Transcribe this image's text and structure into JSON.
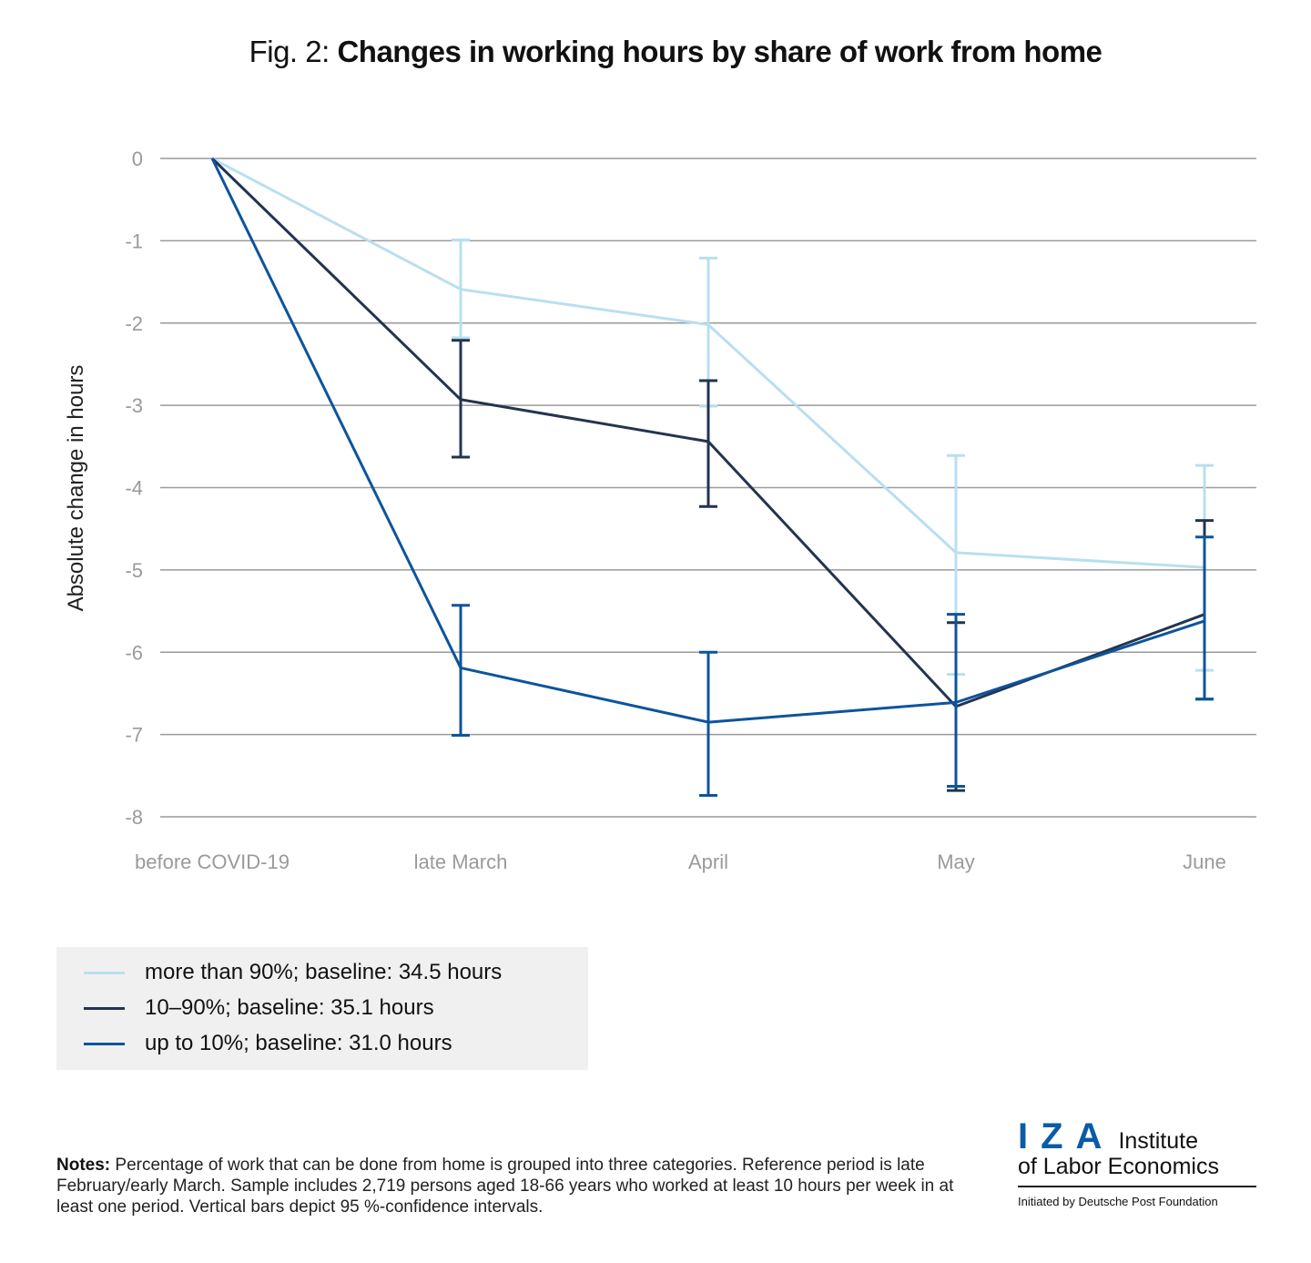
{
  "title": {
    "prefix": "Fig. 2: ",
    "main": "Changes in working hours by share of work from home"
  },
  "chart_data": {
    "type": "line",
    "title": "Fig. 2: Changes in working hours by share of work from home",
    "xlabel": "",
    "ylabel": "Absolute change in hours",
    "ylim": [
      -8,
      0
    ],
    "yticks": [
      0,
      -1,
      -2,
      -3,
      -4,
      -5,
      -6,
      -7,
      -8
    ],
    "grid": true,
    "legend_position": "bottom-left",
    "categories": [
      "before COVID-19",
      "late March",
      "April",
      "May",
      "June"
    ],
    "series": [
      {
        "name": "more than 90%; baseline: 34.5 hours",
        "color": "#b9dff0",
        "values": [
          0,
          -1.59,
          -2.02,
          -4.79,
          -4.97
        ],
        "ci_upper": [
          null,
          -0.99,
          -1.21,
          -3.61,
          -3.73
        ],
        "ci_lower": [
          null,
          -2.18,
          -3.01,
          -6.27,
          -6.22
        ]
      },
      {
        "name": "10–90%; baseline: 35.1 hours",
        "color": "#23344f",
        "values": [
          0,
          -2.93,
          -3.44,
          -6.66,
          -5.54
        ],
        "ci_upper": [
          null,
          -2.21,
          -2.7,
          -5.64,
          -4.4
        ],
        "ci_lower": [
          null,
          -3.63,
          -4.23,
          -7.68,
          -6.57
        ]
      },
      {
        "name": "up to 10%; baseline: 31.0 hours",
        "color": "#0d549c",
        "values": [
          0,
          -6.19,
          -6.85,
          -6.61,
          -5.62
        ],
        "ci_upper": [
          null,
          -5.43,
          -6.0,
          -5.54,
          -4.6
        ],
        "ci_lower": [
          null,
          -7.01,
          -7.74,
          -7.63,
          -6.57
        ]
      }
    ]
  },
  "legend": {
    "items": [
      {
        "label": "more than 90%; baseline: 34.5 hours",
        "color": "#b9dff0"
      },
      {
        "label": "10–90%; baseline: 35.1 hours",
        "color": "#23344f"
      },
      {
        "label": "up to 10%; baseline: 31.0 hours",
        "color": "#0d549c"
      }
    ]
  },
  "notes": {
    "label": "Notes:",
    "text": " Percentage of work that can be done from home is grouped into three categories. Reference period is late February/early March. Sample includes 2,719 persons aged 18-66 years who worked at least 10 hours per week in at least one period. Vertical bars depict 95 %-confidence intervals."
  },
  "logo": {
    "mark": "IZA",
    "line1": "Institute",
    "line2": "of Labor Economics",
    "tagline": "Initiated by Deutsche Post Foundation"
  }
}
